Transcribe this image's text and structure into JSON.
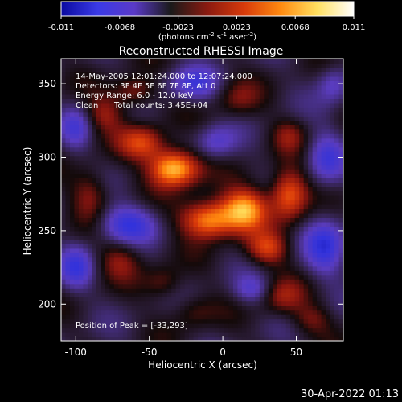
{
  "colorbar": {
    "ticks": [
      "-0.011",
      "-0.0068",
      "-0.0023",
      "0.0023",
      "0.0068",
      "0.011"
    ],
    "unit_line": [
      "(photons cm",
      "-2",
      " s",
      "-1",
      " asec",
      "-2",
      ")"
    ],
    "colors": [
      "#0a0aa0",
      "#3a3ae6",
      "#5a3ac8",
      "#1a1a1a",
      "#8a1a10",
      "#d83a0a",
      "#ff8a10",
      "#ffe060",
      "#ffffff"
    ]
  },
  "annotations": {
    "line1": "14-May-2005 12:01:24.000 to 12:07:24.000",
    "line2": "Detectors: 3F 4F 5F 6F 7F 8F, Att 0",
    "line3": "Energy Range: 6.0 - 12.0 keV",
    "line4_left": "Clean",
    "line4_right": "Total counts: 3.45E+04",
    "peak": "Position of Peak = [-33,293]"
  },
  "timestamp": "30-Apr-2022 01:13",
  "chart_data": {
    "type": "heatmap",
    "title": "Reconstructed RHESSI Image",
    "xlabel": "Heliocentric X (arcsec)",
    "ylabel": "Heliocentric Y (arcsec)",
    "xlim": [
      -110,
      82
    ],
    "ylim": [
      175,
      367
    ],
    "xticks": [
      -100,
      -50,
      0,
      50
    ],
    "yticks": [
      200,
      250,
      300,
      350
    ],
    "zlim": [
      -0.011,
      0.011
    ],
    "peak": [
      -33,
      293
    ],
    "sources": [
      {
        "x": -33,
        "y": 293,
        "flux": 0.011,
        "sx": 12,
        "sy": 9
      },
      {
        "x": -10,
        "y": 258,
        "flux": 0.0095,
        "sx": 13,
        "sy": 9
      },
      {
        "x": 15,
        "y": 265,
        "flux": 0.009,
        "sx": 11,
        "sy": 10
      },
      {
        "x": 45,
        "y": 275,
        "flux": 0.008,
        "sx": 9,
        "sy": 12
      },
      {
        "x": 30,
        "y": 238,
        "flux": 0.006,
        "sx": 10,
        "sy": 8
      },
      {
        "x": -55,
        "y": 310,
        "flux": 0.006,
        "sx": 11,
        "sy": 8
      },
      {
        "x": -80,
        "y": 330,
        "flux": 0.004,
        "sx": 9,
        "sy": 9
      },
      {
        "x": -60,
        "y": 345,
        "flux": 0.0045,
        "sx": 10,
        "sy": 7
      },
      {
        "x": -90,
        "y": 275,
        "flux": 0.004,
        "sx": 9,
        "sy": 12
      },
      {
        "x": -70,
        "y": 230,
        "flux": 0.0035,
        "sx": 10,
        "sy": 9
      },
      {
        "x": -40,
        "y": 215,
        "flux": 0.003,
        "sx": 9,
        "sy": 8
      },
      {
        "x": 40,
        "y": 205,
        "flux": 0.004,
        "sx": 11,
        "sy": 9
      },
      {
        "x": 60,
        "y": 190,
        "flux": 0.003,
        "sx": 9,
        "sy": 7
      },
      {
        "x": -20,
        "y": 195,
        "flux": 0.0025,
        "sx": 10,
        "sy": 8
      },
      {
        "x": 10,
        "y": 340,
        "flux": 0.003,
        "sx": 10,
        "sy": 9
      },
      {
        "x": 45,
        "y": 315,
        "flux": 0.003,
        "sx": 8,
        "sy": 8
      }
    ],
    "negative_regions": [
      {
        "x": -65,
        "y": 255,
        "depth": 0.006,
        "sx": 14,
        "sy": 9
      },
      {
        "x": -100,
        "y": 225,
        "depth": 0.005,
        "sx": 8,
        "sy": 10
      },
      {
        "x": 70,
        "y": 240,
        "depth": 0.006,
        "sx": 10,
        "sy": 14
      },
      {
        "x": 70,
        "y": 300,
        "depth": 0.005,
        "sx": 9,
        "sy": 12
      },
      {
        "x": 20,
        "y": 210,
        "depth": 0.004,
        "sx": 9,
        "sy": 7
      },
      {
        "x": -5,
        "y": 310,
        "depth": 0.004,
        "sx": 10,
        "sy": 8
      },
      {
        "x": -20,
        "y": 350,
        "depth": 0.005,
        "sx": 12,
        "sy": 8
      },
      {
        "x": -100,
        "y": 320,
        "depth": 0.004,
        "sx": 7,
        "sy": 10
      },
      {
        "x": 75,
        "y": 350,
        "depth": 0.004,
        "sx": 8,
        "sy": 9
      }
    ]
  }
}
